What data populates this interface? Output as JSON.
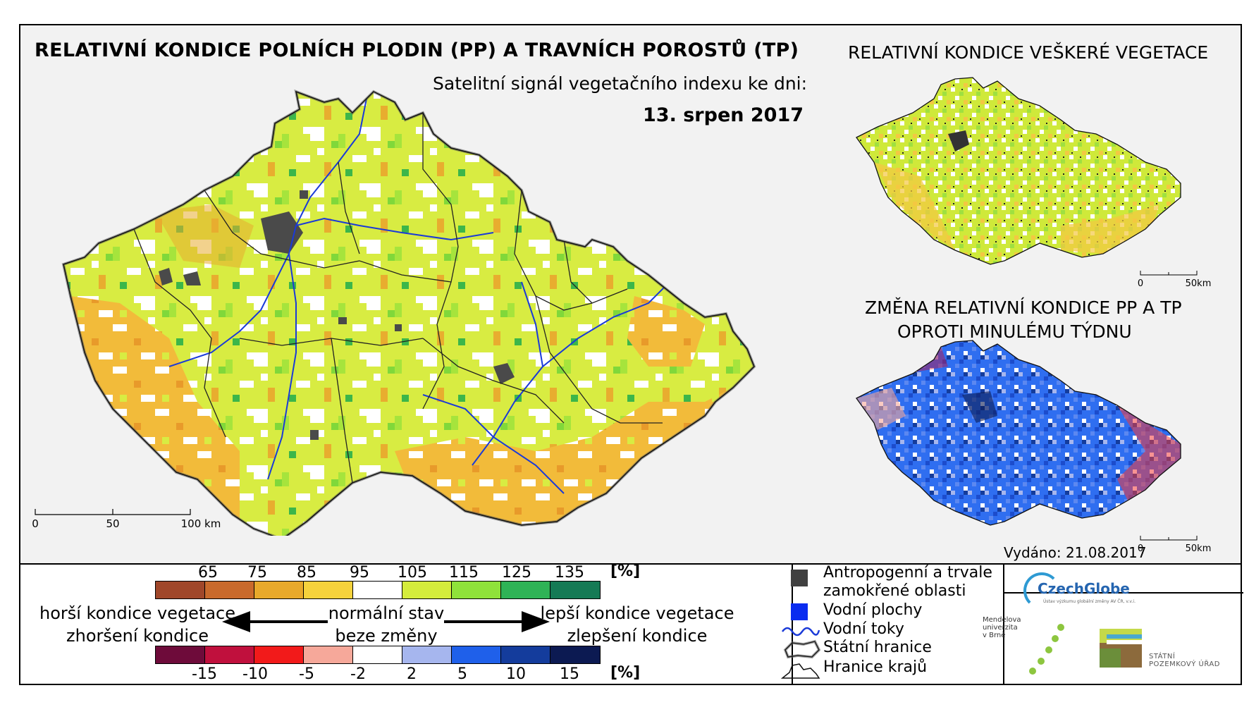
{
  "titles": {
    "main": "RELATIVNÍ KONDICE POLNÍCH PLODIN (PP) A TRAVNÍCH POROSTŮ (TP)",
    "subtitle": "Satelitní signál vegetačního indexu ke dni:",
    "date": "13. srpen 2017",
    "vegetation": "RELATIVNÍ KONDICE VEŠKERÉ VEGETACE",
    "change_line1": "ZMĚNA RELATIVNÍ KONDICE PP A TP",
    "change_line2": "OPROTI MINULÉMU TÝDNU"
  },
  "scalebars": {
    "main": [
      "0",
      "50",
      "100 km"
    ],
    "vegetation": [
      "0",
      "50km"
    ],
    "change": [
      "0",
      "50km"
    ]
  },
  "condition_legend": {
    "unit": "[%]",
    "ticks": [
      "65",
      "75",
      "85",
      "95",
      "105",
      "115",
      "125",
      "135"
    ],
    "colors": [
      "#a0472a",
      "#c96a2c",
      "#e8a92b",
      "#f6d23c",
      "#ffffff",
      "#d4ec3c",
      "#8fe23a",
      "#2fb356",
      "#157a55"
    ]
  },
  "change_legend": {
    "unit": "[%]",
    "ticks": [
      "-15",
      "-10",
      "-5",
      "-2",
      "2",
      "5",
      "10",
      "15"
    ],
    "colors": [
      "#6e0b3a",
      "#c0103d",
      "#f21a1a",
      "#f6a89a",
      "#ffffff",
      "#a6b6ee",
      "#1f60ea",
      "#143c9c",
      "#0c1a52"
    ]
  },
  "arrows": {
    "worse_veg": "horší kondice vegetace",
    "worse_change": "zhoršení kondice",
    "normal": "normální stav",
    "no_change": "beze změny",
    "better_veg": "lepší kondice vegetace",
    "better_change": "zlepšení kondice"
  },
  "map_legend": {
    "antropogenic_1": "Antropogenní a trvale",
    "antropogenic_2": "zamokřené oblasti",
    "water_bodies": "Vodní plochy",
    "rivers": "Vodní toky",
    "state_border": "Státní hranice",
    "regions": "Hranice krajů",
    "colors": {
      "antropogenic": "#404040",
      "water": "#0a2cf0",
      "river": "#1a3ad8"
    }
  },
  "issued": "Vydáno: 21.08.2017",
  "logos": {
    "czechglobe": "CzechGlobe",
    "czechglobe_sub": "Ústav výzkumu globální změny AV ČR, v.v.i.",
    "mendel": [
      "Mendelova",
      "univerzita",
      "v Brně"
    ],
    "spu": [
      "STÁTNÍ",
      "POZEMKOVÝ ÚŘAD"
    ]
  }
}
